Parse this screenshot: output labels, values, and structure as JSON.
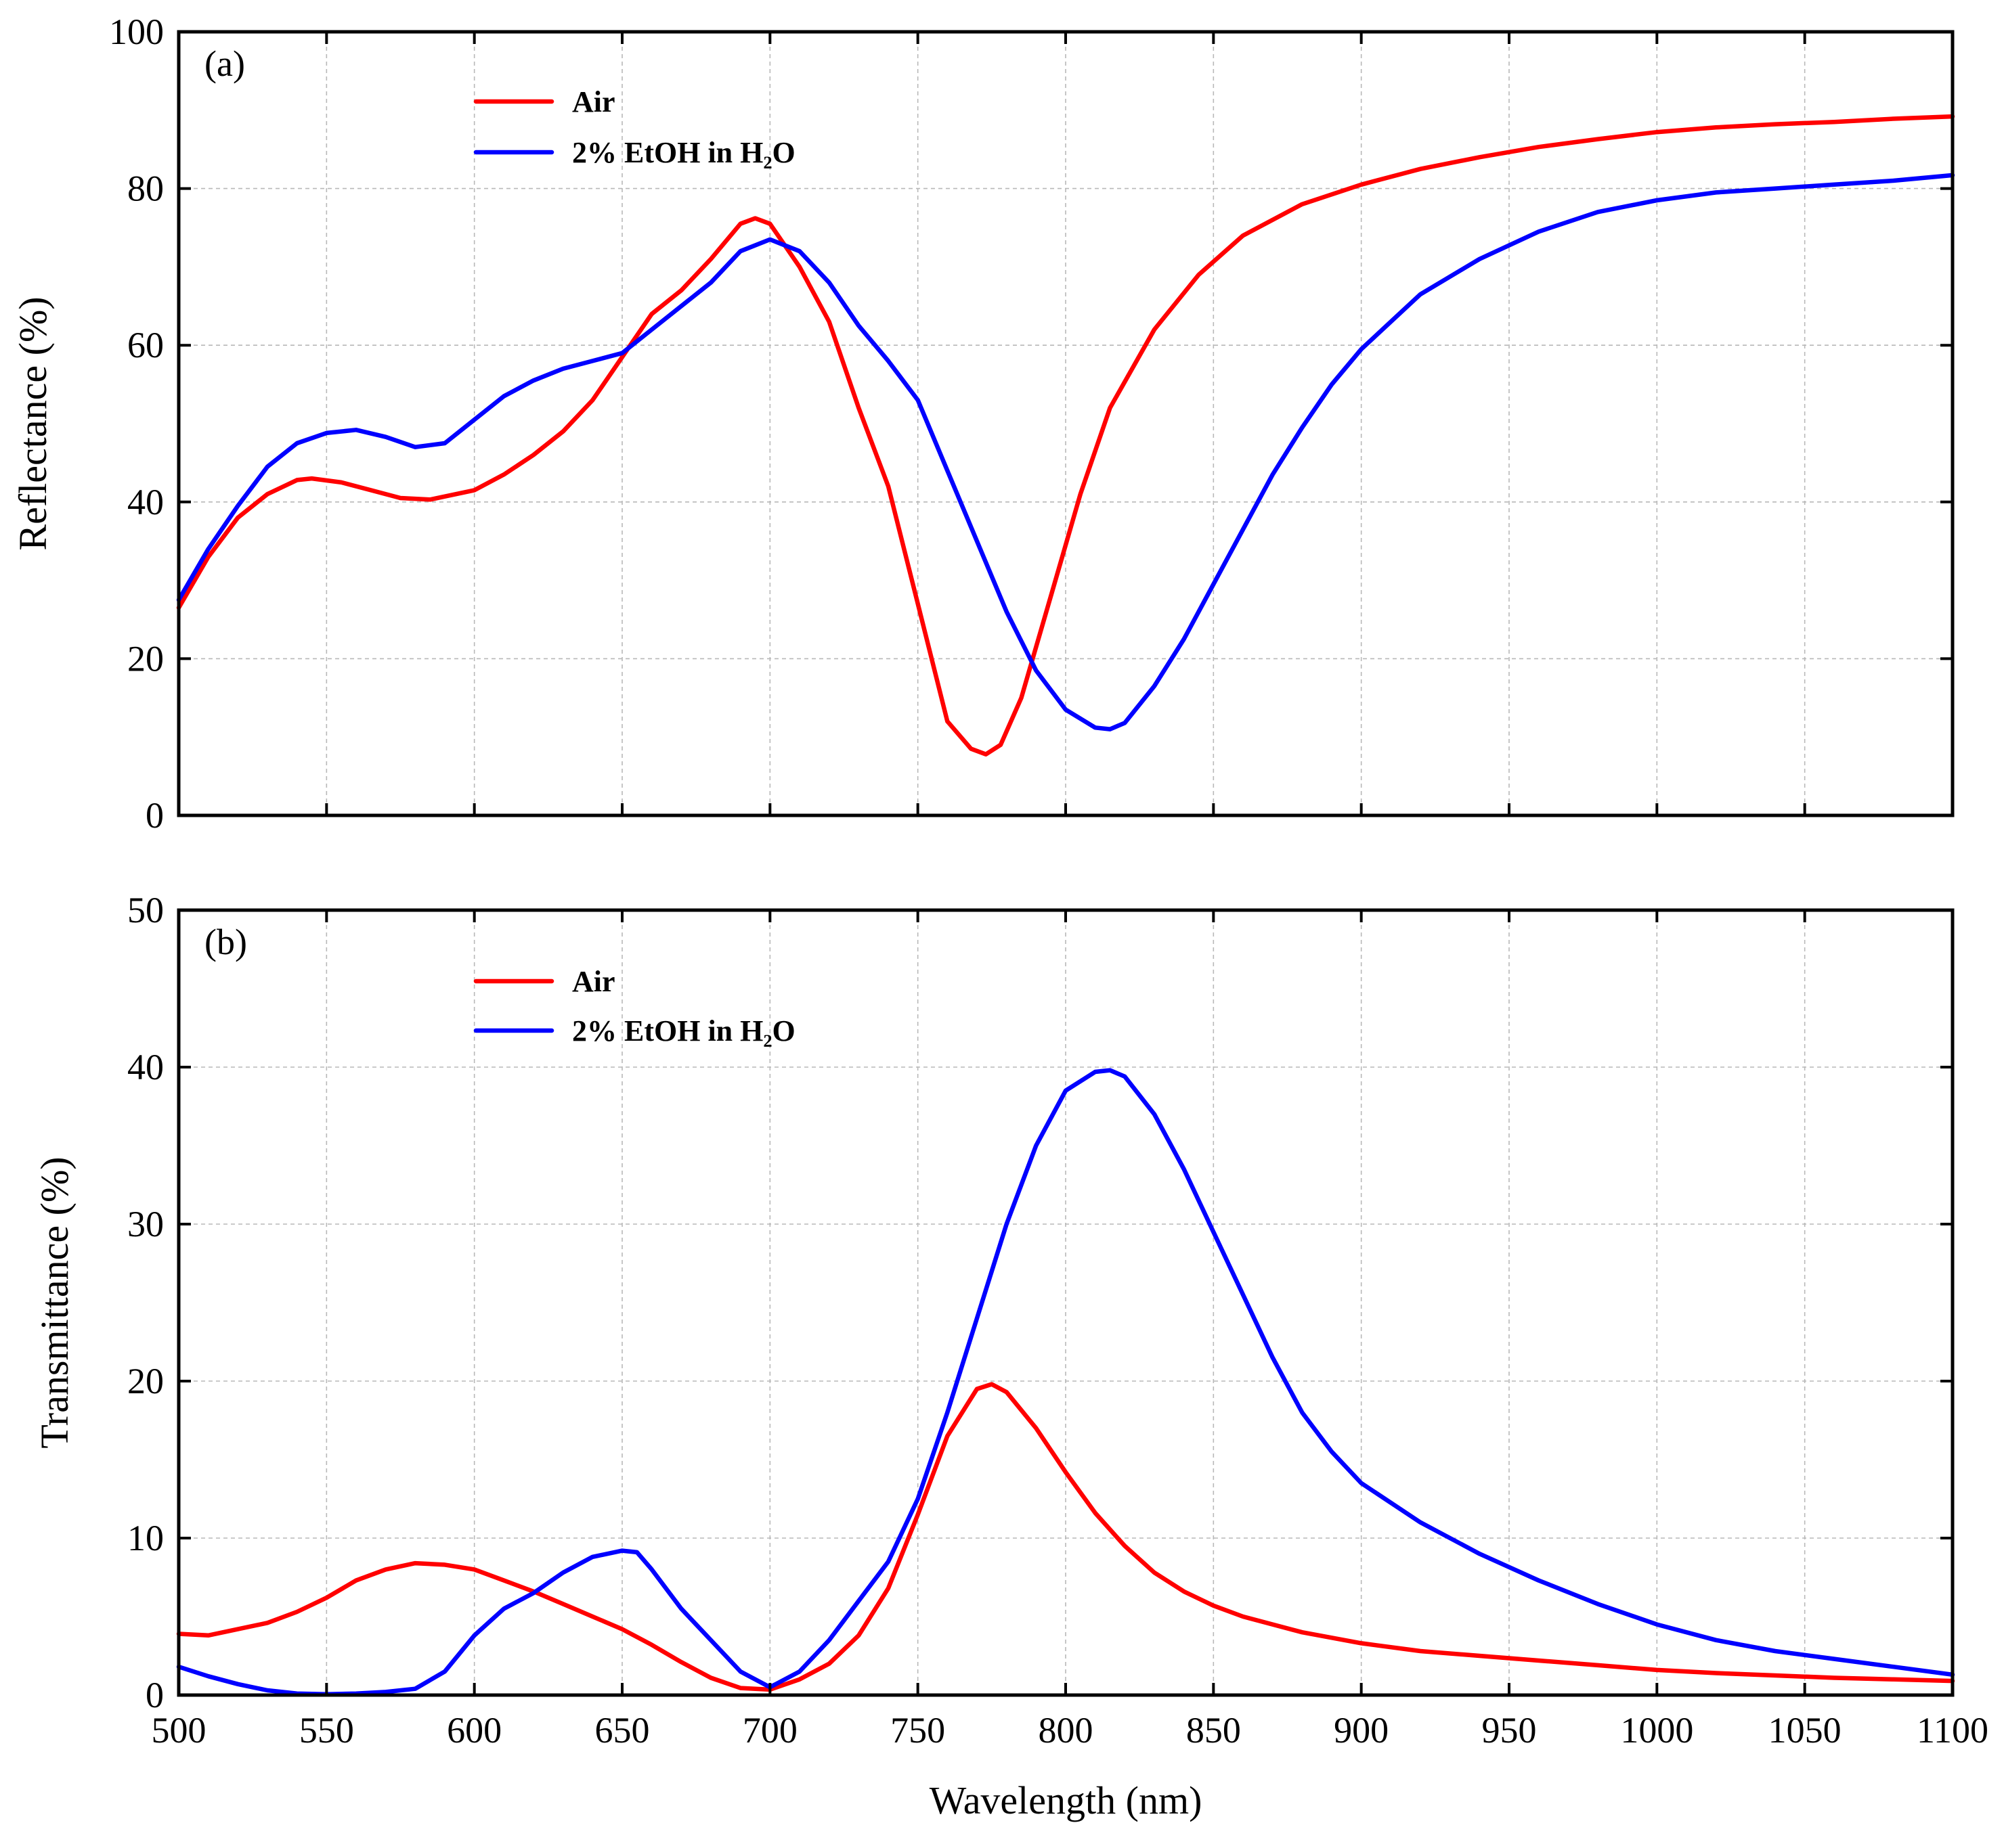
{
  "chart_data": [
    {
      "panel": "(a)",
      "type": "line",
      "xlabel": "Wavelength (nm)",
      "ylabel": "Reflectance (%)",
      "xlim": [
        500,
        1100
      ],
      "ylim": [
        0,
        100
      ],
      "xticks": [
        500,
        550,
        600,
        650,
        700,
        750,
        800,
        850,
        900,
        950,
        1000,
        1050,
        1100
      ],
      "yticks": [
        0,
        20,
        40,
        60,
        80,
        100
      ],
      "grid": true,
      "legend_position": "top-left",
      "series": [
        {
          "name": "Air",
          "color": "#ff0000",
          "x": [
            500,
            510,
            520,
            530,
            540,
            545,
            555,
            565,
            575,
            585,
            600,
            610,
            620,
            630,
            640,
            650,
            660,
            670,
            680,
            690,
            695,
            700,
            710,
            720,
            730,
            740,
            750,
            760,
            768,
            773,
            778,
            785,
            795,
            805,
            815,
            830,
            845,
            860,
            880,
            900,
            920,
            940,
            960,
            980,
            1000,
            1020,
            1040,
            1060,
            1080,
            1100
          ],
          "y": [
            26.5,
            33,
            38,
            41,
            42.8,
            43,
            42.5,
            41.5,
            40.5,
            40.3,
            41.5,
            43.5,
            46,
            49,
            53,
            58.5,
            64,
            67,
            71,
            75.5,
            76.2,
            75.5,
            70,
            63,
            52,
            42,
            27,
            12,
            8.5,
            7.8,
            9,
            15,
            28,
            41,
            52,
            62,
            69,
            74,
            78,
            80.5,
            82.5,
            84,
            85.3,
            86.3,
            87.2,
            87.8,
            88.2,
            88.5,
            88.9,
            89.2
          ]
        },
        {
          "name": "2% EtOH in H₂O",
          "color": "#0000ff",
          "x": [
            500,
            510,
            520,
            530,
            540,
            550,
            560,
            570,
            580,
            590,
            600,
            610,
            620,
            630,
            640,
            650,
            660,
            670,
            680,
            690,
            700,
            710,
            720,
            730,
            740,
            750,
            760,
            770,
            780,
            790,
            800,
            810,
            815,
            820,
            830,
            840,
            850,
            860,
            870,
            880,
            890,
            900,
            920,
            940,
            960,
            980,
            1000,
            1020,
            1040,
            1060,
            1080,
            1100
          ],
          "y": [
            27.5,
            34,
            39.5,
            44.5,
            47.5,
            48.8,
            49.2,
            48.3,
            47,
            47.5,
            50.5,
            53.5,
            55.5,
            57,
            58,
            59,
            62,
            65,
            68,
            72,
            73.5,
            72,
            68,
            62.5,
            58,
            53,
            44,
            35,
            26,
            18.5,
            13.5,
            11.2,
            11,
            11.8,
            16.5,
            22.5,
            29.5,
            36.5,
            43.5,
            49.5,
            55,
            59.5,
            66.5,
            71,
            74.5,
            77,
            78.5,
            79.5,
            80,
            80.5,
            81,
            81.7
          ]
        }
      ]
    },
    {
      "panel": "(b)",
      "type": "line",
      "xlabel": "Wavelength (nm)",
      "ylabel": "Transmittance (%)",
      "xlim": [
        500,
        1100
      ],
      "ylim": [
        0,
        50
      ],
      "xticks": [
        500,
        550,
        600,
        650,
        700,
        750,
        800,
        850,
        900,
        950,
        1000,
        1050,
        1100
      ],
      "yticks": [
        0,
        10,
        20,
        30,
        40,
        50
      ],
      "grid": true,
      "legend_position": "top-left",
      "series": [
        {
          "name": "Air",
          "color": "#ff0000",
          "x": [
            500,
            510,
            520,
            530,
            540,
            550,
            560,
            570,
            580,
            590,
            600,
            610,
            620,
            630,
            640,
            650,
            660,
            670,
            680,
            690,
            700,
            710,
            720,
            730,
            740,
            750,
            760,
            770,
            775,
            780,
            790,
            800,
            810,
            820,
            830,
            840,
            850,
            860,
            880,
            900,
            920,
            940,
            960,
            980,
            1000,
            1020,
            1040,
            1060,
            1080,
            1100
          ],
          "y": [
            3.9,
            3.8,
            4.2,
            4.6,
            5.3,
            6.2,
            7.3,
            8.0,
            8.4,
            8.3,
            8.0,
            7.3,
            6.6,
            5.8,
            5.0,
            4.2,
            3.2,
            2.1,
            1.1,
            0.45,
            0.35,
            1.0,
            2.0,
            3.8,
            6.8,
            11.5,
            16.5,
            19.5,
            19.8,
            19.3,
            17.0,
            14.2,
            11.6,
            9.5,
            7.8,
            6.6,
            5.7,
            5.0,
            4.0,
            3.3,
            2.8,
            2.5,
            2.2,
            1.9,
            1.6,
            1.4,
            1.25,
            1.1,
            1.0,
            0.9
          ]
        },
        {
          "name": "2% EtOH in H₂O",
          "color": "#0000ff",
          "x": [
            500,
            510,
            520,
            530,
            540,
            550,
            560,
            570,
            580,
            590,
            600,
            610,
            620,
            630,
            640,
            650,
            655,
            660,
            670,
            680,
            690,
            700,
            710,
            720,
            730,
            740,
            750,
            760,
            770,
            780,
            790,
            800,
            810,
            815,
            820,
            830,
            840,
            850,
            860,
            870,
            880,
            890,
            900,
            920,
            940,
            960,
            980,
            1000,
            1020,
            1040,
            1060,
            1080,
            1100
          ],
          "y": [
            1.8,
            1.2,
            0.7,
            0.3,
            0.1,
            0.05,
            0.1,
            0.2,
            0.4,
            1.5,
            3.8,
            5.5,
            6.5,
            7.8,
            8.8,
            9.2,
            9.1,
            8.0,
            5.5,
            3.5,
            1.5,
            0.5,
            1.5,
            3.5,
            6.0,
            8.5,
            12.5,
            18.0,
            24.0,
            30.0,
            35.0,
            38.5,
            39.7,
            39.8,
            39.4,
            37.0,
            33.5,
            29.5,
            25.5,
            21.5,
            18.0,
            15.5,
            13.5,
            11.0,
            9.0,
            7.3,
            5.8,
            4.5,
            3.5,
            2.8,
            2.3,
            1.8,
            1.3
          ]
        }
      ]
    }
  ]
}
